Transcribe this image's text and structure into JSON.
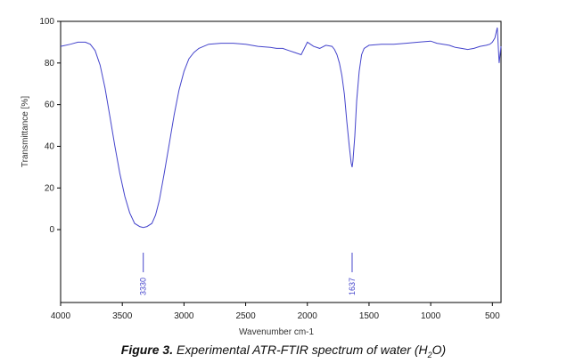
{
  "chart_data": {
    "type": "line",
    "xlabel": "Wavenumber cm-1",
    "ylabel": "Transmittance [%]",
    "xlim": [
      4000,
      430
    ],
    "x_reversed": true,
    "ylim": [
      -35,
      100
    ],
    "x_ticks": [
      4000,
      3500,
      3000,
      2500,
      2000,
      1500,
      1000,
      500
    ],
    "y_ticks": [
      0,
      20,
      40,
      60,
      80,
      100
    ],
    "grid": false,
    "legend": "none",
    "series": [
      {
        "color": "#4444cc",
        "x": [
          4000,
          3920,
          3860,
          3800,
          3760,
          3720,
          3680,
          3640,
          3600,
          3560,
          3520,
          3480,
          3440,
          3400,
          3360,
          3330,
          3300,
          3260,
          3230,
          3200,
          3160,
          3120,
          3080,
          3040,
          3000,
          2960,
          2920,
          2880,
          2840,
          2800,
          2700,
          2600,
          2500,
          2400,
          2300,
          2250,
          2200,
          2150,
          2100,
          2050,
          2000,
          1950,
          1900,
          1850,
          1800,
          1780,
          1760,
          1740,
          1720,
          1700,
          1680,
          1660,
          1645,
          1637,
          1630,
          1615,
          1600,
          1580,
          1560,
          1540,
          1500,
          1400,
          1300,
          1200,
          1100,
          1000,
          950,
          900,
          850,
          800,
          750,
          700,
          650,
          600,
          550,
          520,
          500,
          480,
          460,
          445,
          430
        ],
        "y": [
          88,
          89,
          90,
          90,
          89,
          86,
          79,
          68,
          54,
          40,
          27,
          16,
          8,
          3,
          1.5,
          1,
          1.5,
          3,
          7,
          14,
          27,
          41,
          55,
          67,
          76,
          82,
          85,
          87,
          88,
          89,
          89.5,
          89.5,
          89,
          88,
          87.5,
          87,
          87,
          86,
          85,
          84,
          90,
          88,
          87,
          88.5,
          88,
          86.5,
          84,
          80,
          74,
          65,
          52,
          40,
          32,
          30,
          33,
          45,
          62,
          76,
          84,
          87,
          88.5,
          89,
          89,
          89.5,
          90,
          90.5,
          89.5,
          89,
          88.5,
          87.5,
          87,
          86.5,
          87,
          88,
          88.5,
          89,
          90,
          92,
          97,
          80,
          88
        ]
      }
    ],
    "annotations": [
      {
        "x": 3330,
        "label": "3330"
      },
      {
        "x": 1637,
        "label": "1637"
      }
    ]
  },
  "caption": {
    "lead": "Figure 3.",
    "text": " Experimental ATR-FTIR spectrum of water (H",
    "subscript": "2",
    "tail": "O)"
  }
}
